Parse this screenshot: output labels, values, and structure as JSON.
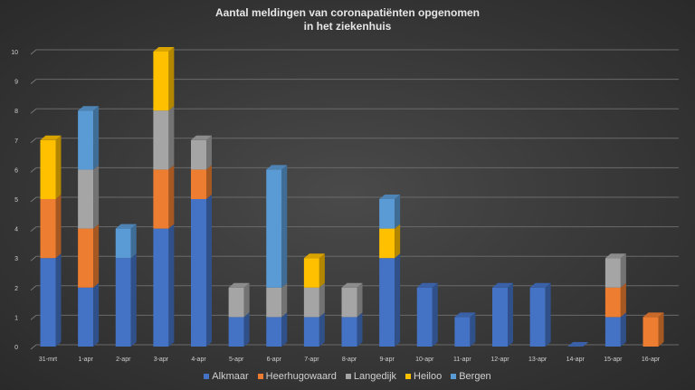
{
  "chart_data": {
    "type": "bar",
    "stacked": true,
    "title_line1": "Aantal meldingen van coronapatiënten opgenomen",
    "title_line2": "in het ziekenhuis",
    "xlabel": "",
    "ylabel": "",
    "ylim": [
      0,
      10
    ],
    "yticks": [
      0,
      1,
      2,
      3,
      4,
      5,
      6,
      7,
      8,
      9,
      10
    ],
    "grid": true,
    "legend_position": "bottom",
    "categories": [
      "31-mrt",
      "1-apr",
      "2-apr",
      "3-apr",
      "4-apr",
      "5-apr",
      "6-apr",
      "7-apr",
      "8-apr",
      "9-apr",
      "10-apr",
      "11-apr",
      "12-apr",
      "13-apr",
      "14-apr",
      "15-apr",
      "16-apr"
    ],
    "series": [
      {
        "name": "Alkmaar",
        "color": "#4472c4",
        "values": [
          3,
          2,
          3,
          4,
          5,
          1,
          1,
          1,
          1,
          3,
          2,
          1,
          2,
          2,
          0,
          1,
          0
        ]
      },
      {
        "name": "Heerhugowaard",
        "color": "#ed7d31",
        "values": [
          2,
          2,
          0,
          2,
          1,
          0,
          0,
          0,
          0,
          0,
          0,
          0,
          0,
          0,
          0,
          1,
          1
        ]
      },
      {
        "name": "Langedijk",
        "color": "#a5a5a5",
        "values": [
          0,
          2,
          0,
          2,
          1,
          1,
          1,
          1,
          1,
          0,
          0,
          0,
          0,
          0,
          0,
          1,
          0
        ]
      },
      {
        "name": "Heiloo",
        "color": "#ffc000",
        "values": [
          2,
          0,
          0,
          2,
          0,
          0,
          0,
          1,
          0,
          1,
          0,
          0,
          0,
          0,
          0,
          0,
          0
        ]
      },
      {
        "name": "Bergen",
        "color": "#5b9bd5",
        "values": [
          0,
          2,
          1,
          0,
          0,
          0,
          4,
          0,
          0,
          1,
          0,
          0,
          0,
          0,
          0,
          0,
          0
        ]
      }
    ]
  }
}
